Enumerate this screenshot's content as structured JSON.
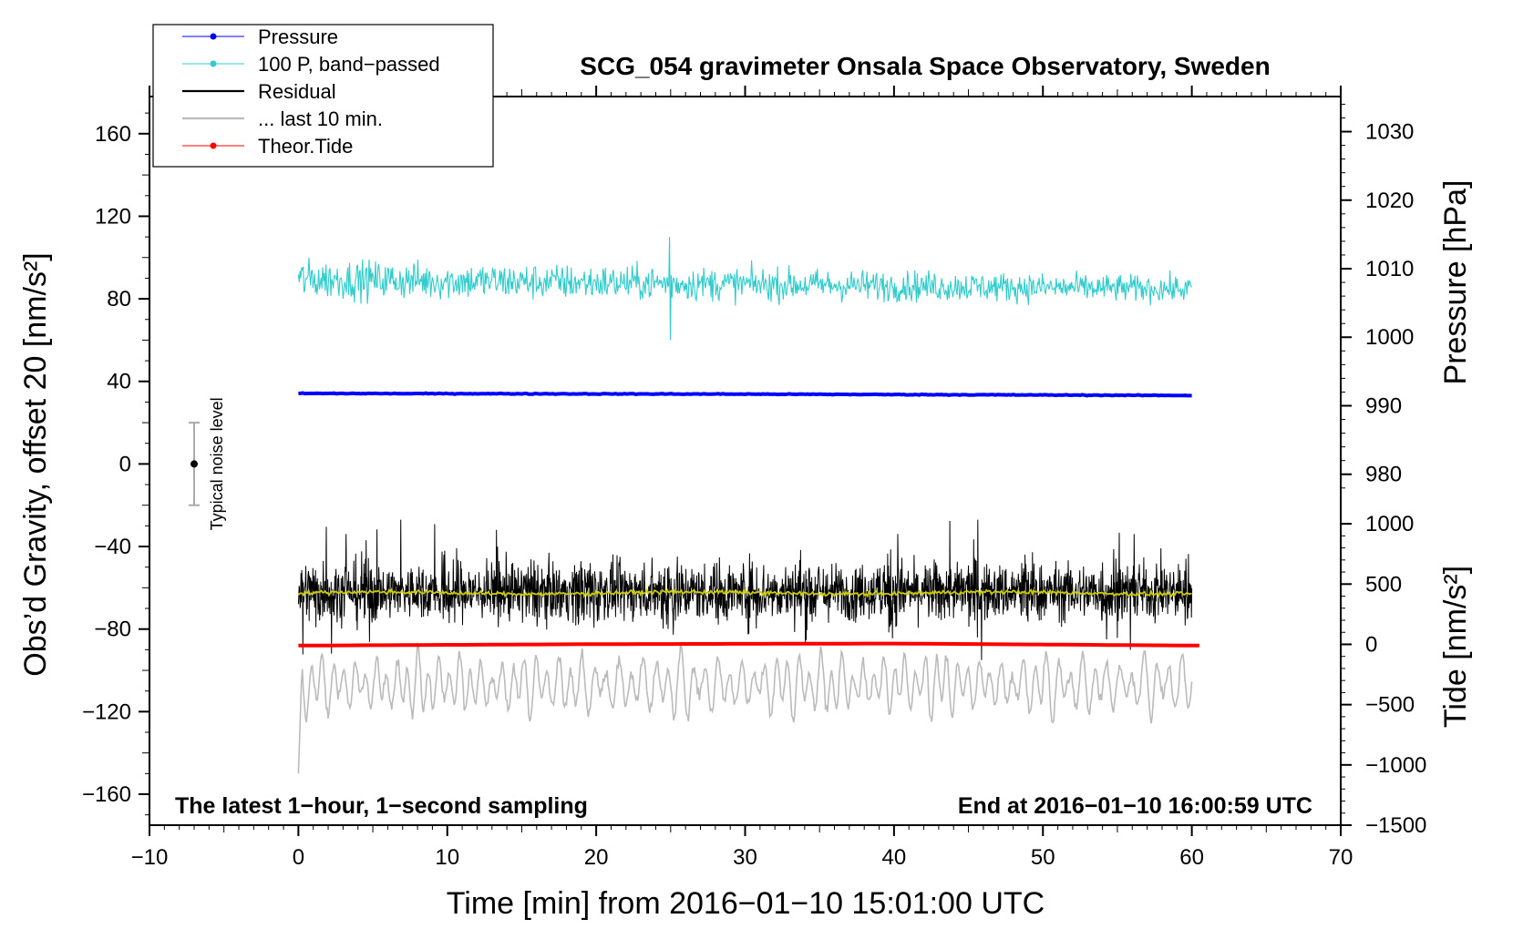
{
  "chart_data": {
    "type": "line",
    "title": "SCG_054 gravimeter Onsala Space Observatory, Sweden",
    "xlabel": "Time [min] from 2016−01−10 15:01:00 UTC",
    "ylabel_left": "Obs’d Gravity, offset 20 [nm/s²]",
    "ylabel_pressure": "Pressure [hPa]",
    "ylabel_tide": "Tide [nm/s²]",
    "xlim": [
      -10,
      70
    ],
    "ylim_left": [
      -175,
      178
    ],
    "x_ticks": [
      -10,
      0,
      10,
      20,
      30,
      40,
      50,
      60,
      70
    ],
    "x_tick_labels": [
      "−10",
      "0",
      "10",
      "20",
      "30",
      "40",
      "50",
      "60",
      "70"
    ],
    "y_left_ticks": [
      160,
      120,
      80,
      40,
      0,
      -40,
      -80,
      -120,
      -160
    ],
    "y_left_tick_labels": [
      "160",
      "120",
      "80",
      "40",
      "0",
      "−40",
      "−80",
      "−120",
      "−160"
    ],
    "pressure_axis": {
      "ticks": [
        1030,
        1020,
        1010,
        1000,
        990,
        980
      ],
      "tick_labels": [
        "1030",
        "1020",
        "1010",
        "1000",
        "990",
        "980"
      ],
      "maps": {
        "hpa": [
          1030,
          980
        ],
        "gravity": [
          161,
          -5
        ]
      }
    },
    "tide_axis": {
      "ticks": [
        1000,
        500,
        0,
        -500,
        -1000,
        -1500
      ],
      "tick_labels": [
        "1000",
        "500",
        "0",
        "−500",
        "−1000",
        "−1500"
      ],
      "maps": {
        "nms2": [
          1000,
          -1500
        ],
        "gravity": [
          -29,
          -175
        ]
      }
    },
    "legend": [
      {
        "label": "Pressure",
        "color": "#0000ff",
        "style": "line-dot"
      },
      {
        "label": "100 P, band−passed",
        "color": "#33cccc",
        "style": "line-dot"
      },
      {
        "label": "Residual",
        "color": "#000000",
        "style": "line"
      },
      {
        "label": "... last 10 min.",
        "color": "#bbbbbb",
        "style": "line"
      },
      {
        "label": "Theor.Tide",
        "color": "#ff0000",
        "style": "line-dot"
      }
    ],
    "series": [
      {
        "name": "100 P, band−passed",
        "color": "#33cccc",
        "x_range": [
          0,
          60
        ],
        "center": 89.5,
        "amplitude": 10,
        "note": "noisy, peak ~110 and dip ~60 near x=25"
      },
      {
        "name": "Pressure",
        "color": "#0000ff",
        "x_range": [
          0,
          60
        ],
        "values_hpa": [
          [
            0,
            991.8
          ],
          [
            30,
            991.7
          ],
          [
            60,
            991.5
          ]
        ]
      },
      {
        "name": "Residual",
        "color": "#000000",
        "x_range": [
          0,
          60
        ],
        "center": -62,
        "amplitude": 22
      },
      {
        "name": "Residual smoothed",
        "color": "#cccc00",
        "x_range": [
          0,
          60
        ],
        "center": -62.5,
        "amplitude": 1.5
      },
      {
        "name": "... last 10 min.",
        "color": "#bbbbbb",
        "x_range": [
          0,
          60
        ],
        "center": -107,
        "amplitude": 18,
        "start_value": -150
      },
      {
        "name": "Theor.Tide",
        "color": "#ff0000",
        "x_range": [
          0,
          60.5
        ],
        "values": [
          [
            0,
            -88
          ],
          [
            20,
            -87.3
          ],
          [
            40,
            -87
          ],
          [
            60.5,
            -88
          ]
        ]
      }
    ],
    "noise_bar": {
      "x": -7,
      "center": 0,
      "low": -20,
      "high": 20,
      "label": "Typical noise level"
    },
    "annotation_left": "The latest 1−hour, 1−second sampling",
    "annotation_right": "End at 2016−01−10 16:00:59 UTC"
  }
}
